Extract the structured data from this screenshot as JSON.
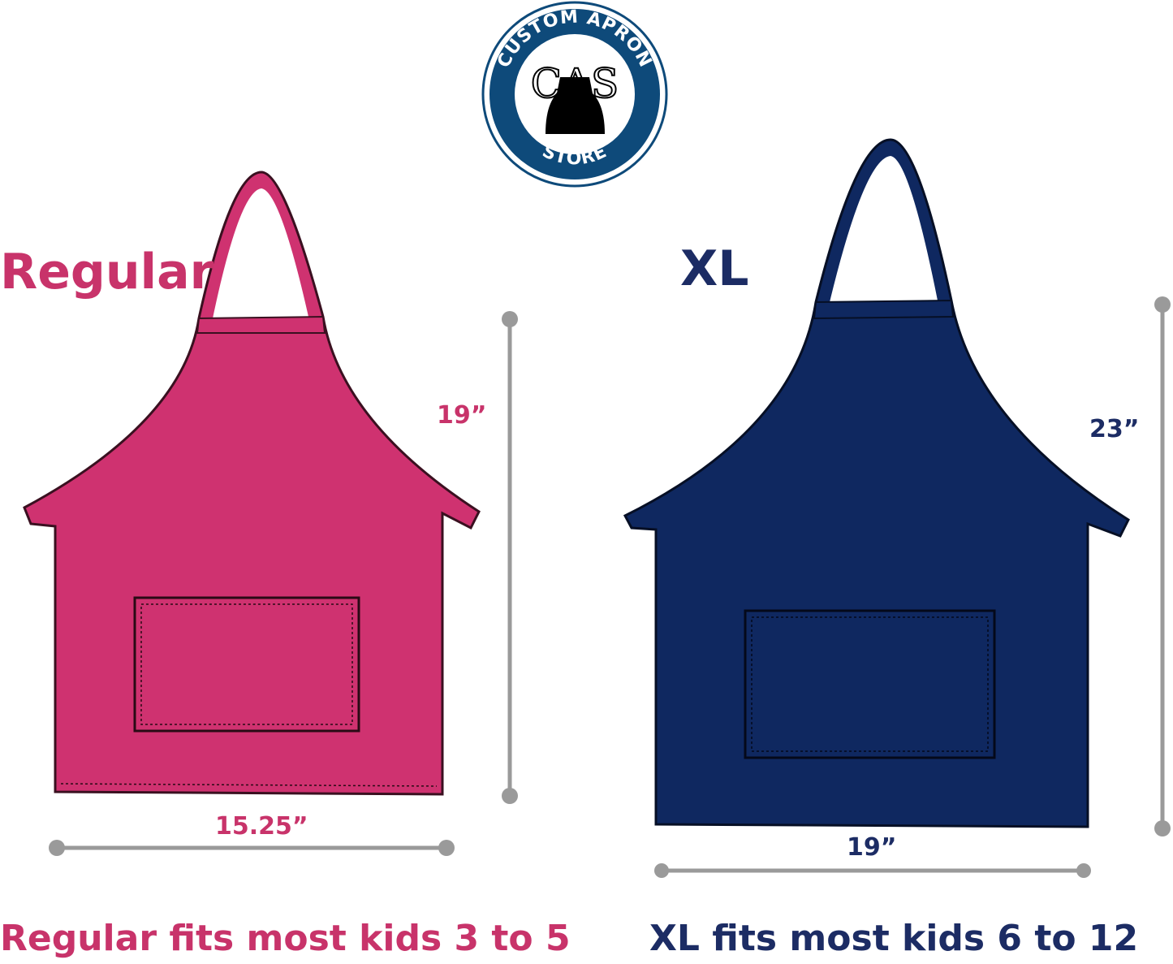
{
  "logo": {
    "text_top": "CUSTOM APRON",
    "monogram": "CAS",
    "text_bottom": "STORE",
    "color": "#0e4a7a"
  },
  "regular": {
    "title": "Regular",
    "height": "19”",
    "width": "15.25”",
    "caption": "Regular fits most kids 3 to 5",
    "color": "#cf3270",
    "text_color": "#c8336a"
  },
  "xl": {
    "title": "XL",
    "height": "23”",
    "width": "19”",
    "caption": "XL fits most kids 6 to 12",
    "color": "#0f2860",
    "text_color": "#1c2c64"
  },
  "measure_color": "#9a9a9a"
}
